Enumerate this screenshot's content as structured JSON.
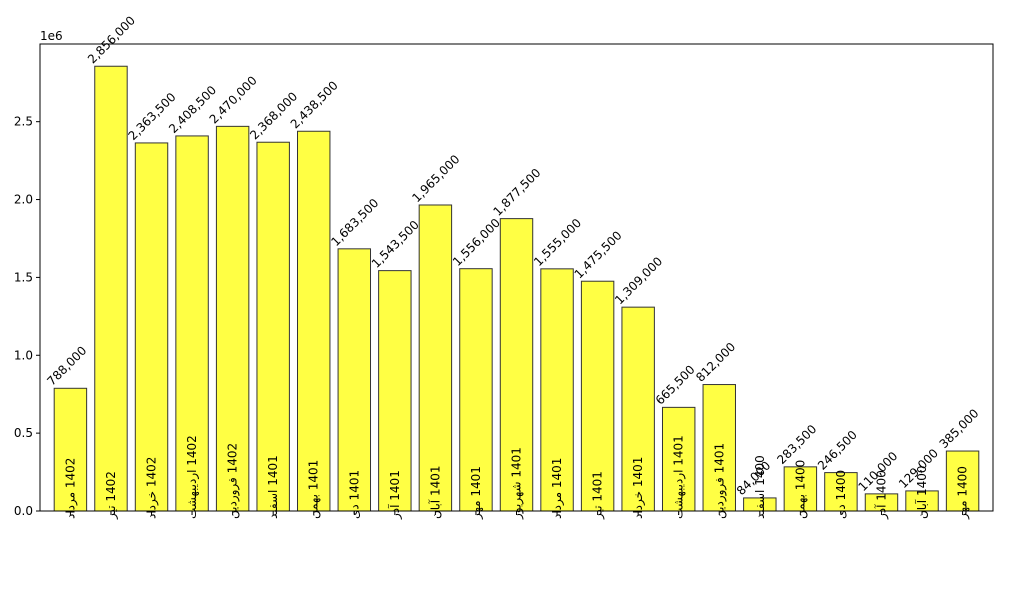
{
  "chart_data": {
    "type": "bar",
    "title": "",
    "xlabel": "",
    "ylabel": "",
    "y_offset_label": "1e6",
    "ylim": [
      0,
      2998800
    ],
    "yticks": [
      0,
      500000,
      1000000,
      1500000,
      2000000,
      2500000
    ],
    "ytick_labels": [
      "0.0",
      "0.5",
      "1.0",
      "1.5",
      "2.0",
      "2.5"
    ],
    "grid": false,
    "bar_color": "#ffff44",
    "edge_color": "#333333",
    "categories": [
      "1402 مرداد",
      "1402 تیر",
      "1402 خرداد",
      "1402 اردیبهشت",
      "1402 فروردین",
      "1401 اسفند",
      "1401 بهمن",
      "1401 دی",
      "1401 آذر",
      "1401 آبان",
      "1401 مهر",
      "1401 شهریور",
      "1401 مرداد",
      "1401 تیر",
      "1401 خرداد",
      "1401 اردیبهشت",
      "1401 فروردین",
      "1400 اسفند",
      "1400 بهمن",
      "1400 دی",
      "1400 آذر",
      "1400 آبان",
      "1400 مهر"
    ],
    "values": [
      788000,
      2856000,
      2363500,
      2408500,
      2470000,
      2368000,
      2438500,
      1683500,
      1543500,
      1965000,
      1556000,
      1877500,
      1555000,
      1475500,
      1309000,
      665500,
      812000,
      84000,
      283500,
      246500,
      110000,
      129000,
      385000
    ],
    "data_labels": [
      "788,000",
      "2,856,000",
      "2,363,500",
      "2,408,500",
      "2,470,000",
      "2,368,000",
      "2,438,500",
      "1,683,500",
      "1,543,500",
      "1,965,000",
      "1,556,000",
      "1,877,500",
      "1,555,000",
      "1,475,500",
      "1,309,000",
      "665,500",
      "812,000",
      "84,000",
      "283,500",
      "246,500",
      "110,000",
      "129,000",
      "385,000"
    ]
  }
}
